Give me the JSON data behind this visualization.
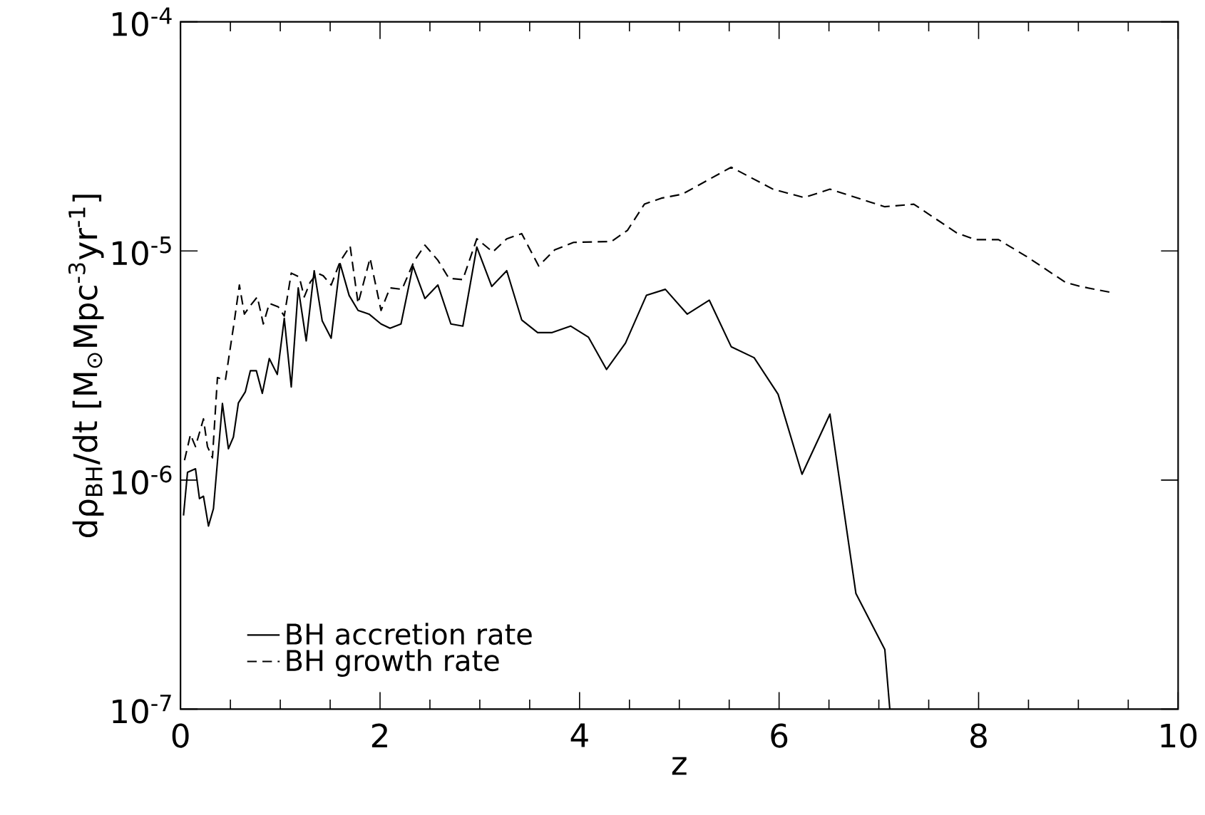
{
  "chart_data": {
    "type": "line",
    "xlabel": "z",
    "ylabel": "dρ$_{BH}$/dt  [M$_{⊙}$Mpc$^{-3}$yr$^{-1}$]",
    "xlim": [
      0,
      10
    ],
    "xticks": [
      0,
      2,
      4,
      6,
      8,
      10
    ],
    "ylim": [
      1e-07,
      0.0001
    ],
    "yticks": [
      {
        "value": 1e-07,
        "label": "10$^{-7}$"
      },
      {
        "value": 1e-06,
        "label": "10$^{-6}$"
      },
      {
        "value": 1e-05,
        "label": "10$^{-5}$"
      },
      {
        "value": 0.0001,
        "label": "10$^{-4}$"
      }
    ],
    "log": true,
    "legend": "bottom left",
    "series": [
      {
        "name": "BH accretion rate",
        "color": "#000000",
        "line_style": "solid",
        "x": [
          0.03,
          0.07,
          0.15,
          0.19,
          0.23,
          0.28,
          0.33,
          0.42,
          0.48,
          0.53,
          0.58,
          0.65,
          0.7,
          0.76,
          0.82,
          0.89,
          0.97,
          1.04,
          1.11,
          1.18,
          1.26,
          1.34,
          1.42,
          1.51,
          1.6,
          1.69,
          1.78,
          1.89,
          2.01,
          2.1,
          2.21,
          2.33,
          2.45,
          2.58,
          2.71,
          2.83,
          2.97,
          3.12,
          3.27,
          3.42,
          3.58,
          3.72,
          3.91,
          4.09,
          4.27,
          4.46,
          4.67,
          4.86,
          5.08,
          5.3,
          5.52,
          5.75,
          5.99,
          6.23,
          6.51,
          6.77,
          7.06,
          7.11
        ],
        "values": [
          7e-07,
          1.08e-06,
          1.12e-06,
          8.3e-07,
          8.5e-07,
          6.3e-07,
          7.5e-07,
          2.16e-06,
          1.37e-06,
          1.54e-06,
          2.17e-06,
          2.43e-06,
          3e-06,
          3e-06,
          2.39e-06,
          3.39e-06,
          2.89e-06,
          5.08e-06,
          2.55e-06,
          6.9e-06,
          4.05e-06,
          8.2e-06,
          4.96e-06,
          4.16e-06,
          8.8e-06,
          6.4e-06,
          5.5e-06,
          5.3e-06,
          4.8e-06,
          4.6e-06,
          4.8e-06,
          8.6e-06,
          6.2e-06,
          7.1e-06,
          4.8e-06,
          4.7e-06,
          1.04e-05,
          7e-06,
          8.2e-06,
          5e-06,
          4.4e-06,
          4.4e-06,
          4.7e-06,
          4.2e-06,
          3.04e-06,
          3.96e-06,
          6.4e-06,
          6.8e-06,
          5.3e-06,
          6.1e-06,
          3.82e-06,
          3.42e-06,
          2.37e-06,
          1.06e-06,
          1.94e-06,
          3.2e-07,
          1.82e-07,
          1e-07
        ]
      },
      {
        "name": "BH growth rate",
        "color": "#000000",
        "line_style": "dashed",
        "x": [
          0.04,
          0.1,
          0.15,
          0.23,
          0.27,
          0.32,
          0.37,
          0.45,
          0.54,
          0.59,
          0.64,
          0.69,
          0.77,
          0.83,
          0.89,
          0.98,
          1.04,
          1.11,
          1.19,
          1.24,
          1.3,
          1.37,
          1.43,
          1.51,
          1.6,
          1.7,
          1.78,
          1.9,
          2.01,
          2.1,
          2.22,
          2.34,
          2.45,
          2.58,
          2.69,
          2.83,
          2.97,
          3.13,
          3.27,
          3.42,
          3.59,
          3.75,
          3.94,
          4.32,
          4.48,
          4.65,
          4.82,
          5.03,
          5.52,
          5.94,
          6.25,
          6.51,
          6.92,
          7.06,
          7.35,
          7.78,
          7.97,
          8.2,
          8.49,
          8.87,
          9.02,
          9.32
        ],
        "values": [
          1.22e-06,
          1.58e-06,
          1.4e-06,
          1.85e-06,
          1.4e-06,
          1.25e-06,
          2.8e-06,
          2.73e-06,
          4.96e-06,
          7.1e-06,
          5.3e-06,
          5.7e-06,
          6.3e-06,
          4.8e-06,
          5.9e-06,
          5.7e-06,
          5.2e-06,
          8e-06,
          7.7e-06,
          6.3e-06,
          7.3e-06,
          8e-06,
          7.8e-06,
          7.1e-06,
          9e-06,
          1.05e-05,
          5.9e-06,
          9.3e-06,
          5.5e-06,
          6.9e-06,
          6.8e-06,
          9e-06,
          1.06e-05,
          9.1e-06,
          7.6e-06,
          7.5e-06,
          1.13e-05,
          9.9e-06,
          1.13e-05,
          1.19e-05,
          8.6e-06,
          1.01e-05,
          1.09e-05,
          1.1e-05,
          1.23e-05,
          1.6e-05,
          1.7e-05,
          1.77e-05,
          2.32e-05,
          1.86e-05,
          1.71e-05,
          1.86e-05,
          1.63e-05,
          1.56e-05,
          1.6e-05,
          1.2e-05,
          1.12e-05,
          1.12e-05,
          9.4e-06,
          7.3e-06,
          7e-06,
          6.6e-06
        ]
      }
    ]
  }
}
